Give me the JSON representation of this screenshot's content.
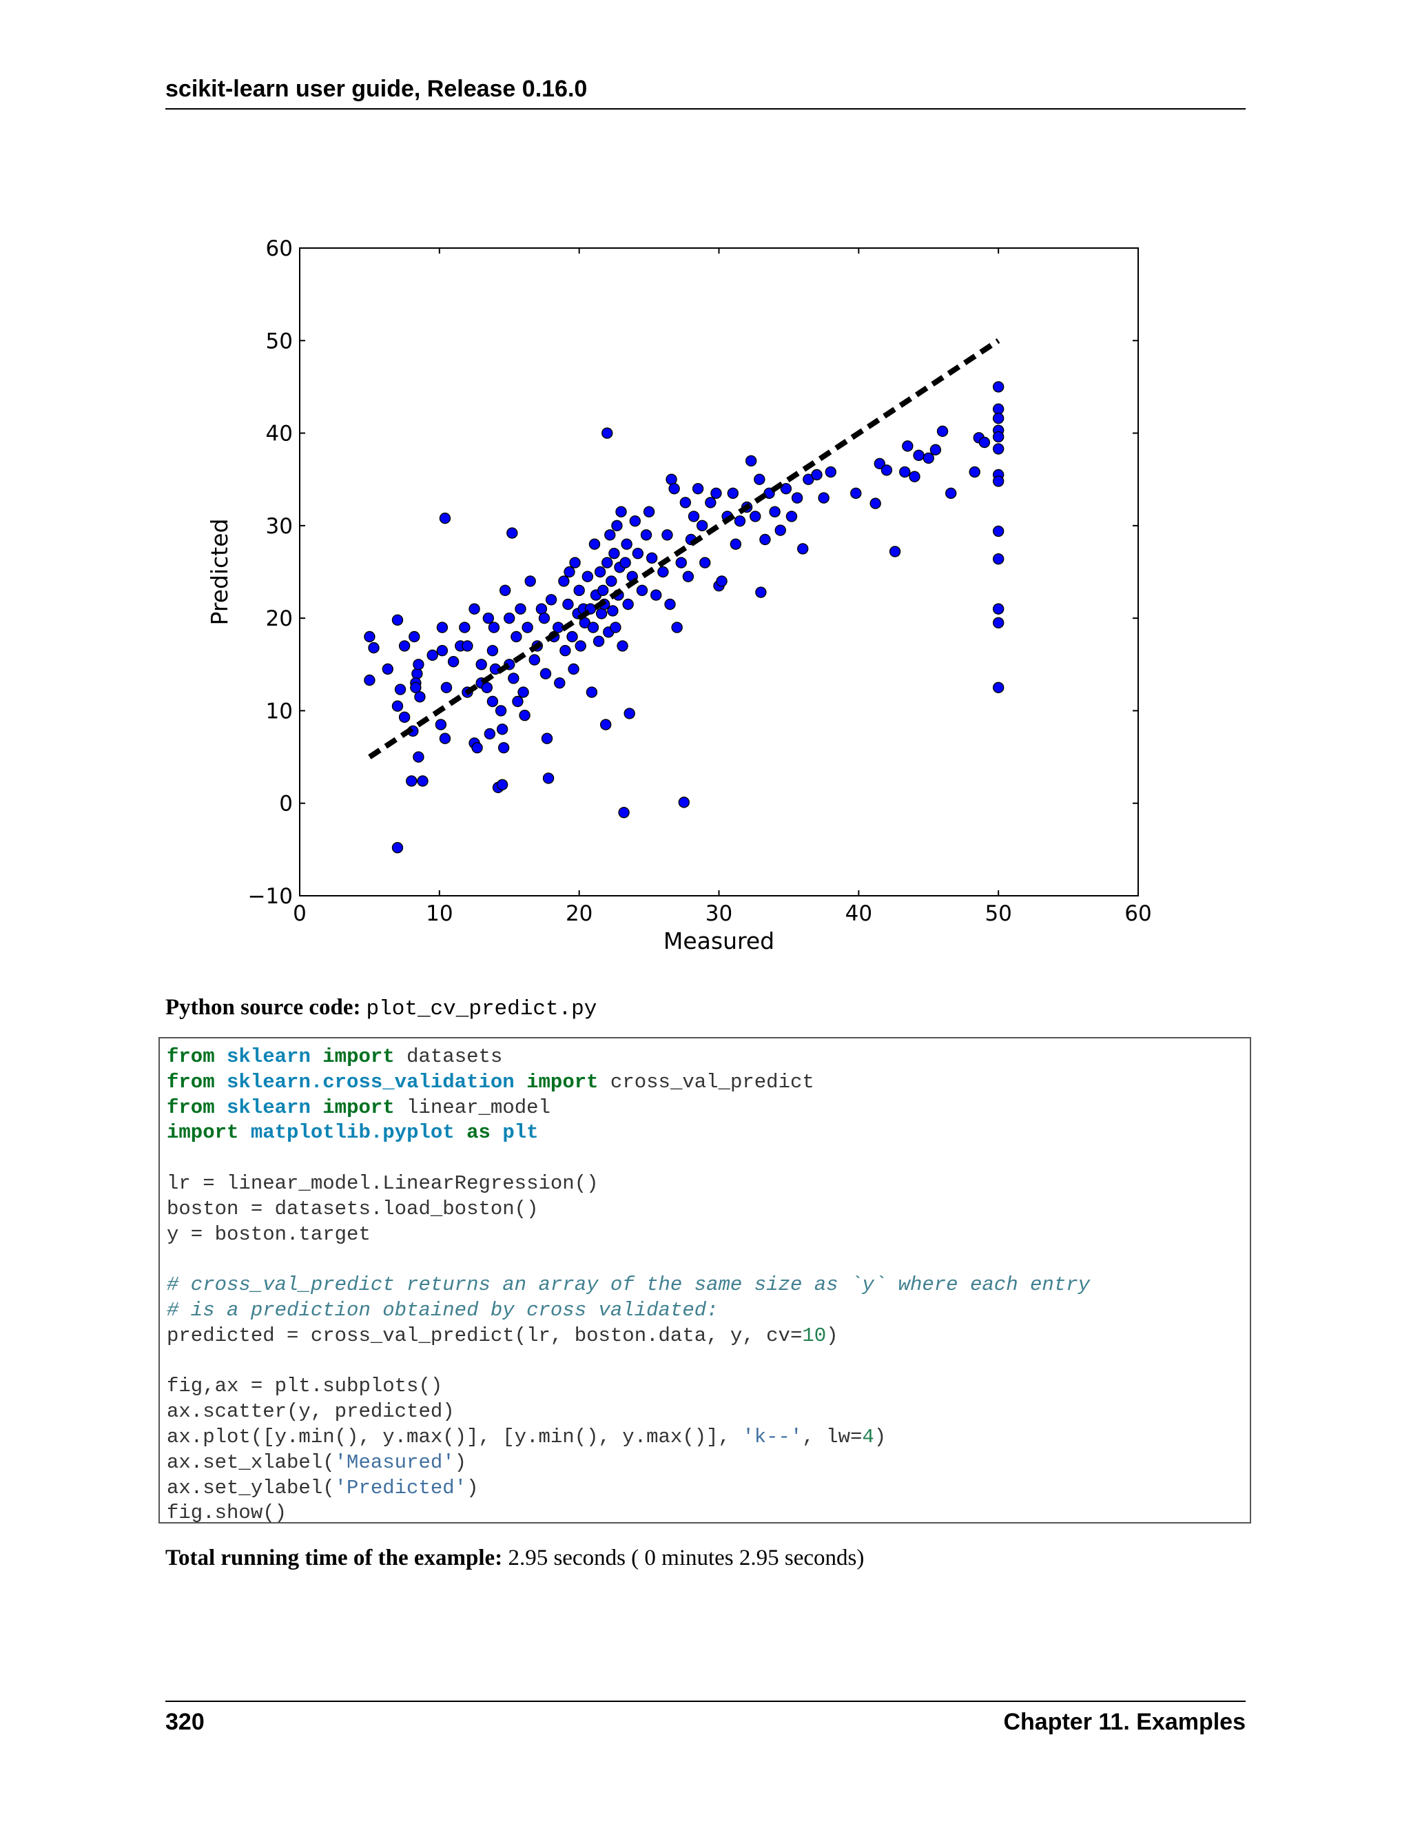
{
  "header": {
    "title": "scikit-learn user guide, Release 0.16.0"
  },
  "chart_data": {
    "type": "scatter",
    "title": "",
    "xlabel": "Measured",
    "ylabel": "Predicted",
    "xlim": [
      0,
      60
    ],
    "ylim": [
      -10,
      60
    ],
    "x_ticks": [
      0,
      10,
      20,
      30,
      40,
      50,
      60
    ],
    "y_ticks": [
      -10,
      0,
      10,
      20,
      30,
      40,
      50,
      60
    ],
    "y_tick_labels": [
      "−10",
      "0",
      "10",
      "20",
      "30",
      "40",
      "50",
      "60"
    ],
    "grid": false,
    "point_color": "#0000ff",
    "line_color": "#000000",
    "series": [
      {
        "type": "scatter",
        "points": [
          [
            5,
            18
          ],
          [
            5.3,
            16.8
          ],
          [
            5,
            13.3
          ],
          [
            6.3,
            14.5
          ],
          [
            7,
            19.8
          ],
          [
            7.2,
            12.3
          ],
          [
            7.5,
            17
          ],
          [
            7,
            10.5
          ],
          [
            7.5,
            9.3
          ],
          [
            8.1,
            7.8
          ],
          [
            8,
            2.4
          ],
          [
            8.8,
            2.4
          ],
          [
            8.5,
            5
          ],
          [
            8.4,
            14
          ],
          [
            8.3,
            13
          ],
          [
            8.3,
            12.5
          ],
          [
            8.6,
            11.5
          ],
          [
            8.5,
            15
          ],
          [
            8.2,
            18
          ],
          [
            9.5,
            16
          ],
          [
            10.2,
            16.5
          ],
          [
            10.2,
            19
          ],
          [
            10.1,
            8.5
          ],
          [
            10.4,
            7
          ],
          [
            10.4,
            30.8
          ],
          [
            10.5,
            12.5
          ],
          [
            11,
            15.3
          ],
          [
            11.5,
            17
          ],
          [
            11.8,
            19
          ],
          [
            12,
            17
          ],
          [
            12,
            12
          ],
          [
            12.5,
            21
          ],
          [
            12.5,
            6.5
          ],
          [
            12.7,
            6
          ],
          [
            13,
            15
          ],
          [
            13,
            13
          ],
          [
            13.4,
            12.5
          ],
          [
            13.5,
            20
          ],
          [
            13.8,
            16.5
          ],
          [
            13.9,
            19
          ],
          [
            13.8,
            11
          ],
          [
            13.6,
            7.5
          ],
          [
            14.4,
            10
          ],
          [
            14.5,
            8
          ],
          [
            14.7,
            23
          ],
          [
            14,
            14.5
          ],
          [
            14.2,
            1.7
          ],
          [
            14.5,
            2
          ],
          [
            14.6,
            6
          ],
          [
            15,
            20
          ],
          [
            15.2,
            29.2
          ],
          [
            15,
            15
          ],
          [
            15.3,
            13.5
          ],
          [
            15.5,
            18
          ],
          [
            15.6,
            11
          ],
          [
            15.8,
            21
          ],
          [
            16,
            12
          ],
          [
            16.1,
            9.5
          ],
          [
            16.3,
            19
          ],
          [
            16.5,
            24
          ],
          [
            16.8,
            15.5
          ],
          [
            17,
            17
          ],
          [
            17.3,
            21
          ],
          [
            17.5,
            20
          ],
          [
            17.6,
            14
          ],
          [
            17.7,
            7
          ],
          [
            17.8,
            2.7
          ],
          [
            18,
            22
          ],
          [
            18.2,
            18
          ],
          [
            18.5,
            19
          ],
          [
            18.6,
            13
          ],
          [
            18.9,
            24
          ],
          [
            19,
            16.5
          ],
          [
            19.2,
            21.5
          ],
          [
            19.3,
            25
          ],
          [
            19.5,
            18
          ],
          [
            19.6,
            14.5
          ],
          [
            19.7,
            26
          ],
          [
            19.9,
            20.5
          ],
          [
            20,
            23
          ],
          [
            20.1,
            17
          ],
          [
            20.3,
            21
          ],
          [
            20.4,
            19.5
          ],
          [
            20.6,
            24.5
          ],
          [
            20.8,
            21
          ],
          [
            20.9,
            12
          ],
          [
            21,
            19
          ],
          [
            21.1,
            28
          ],
          [
            21.2,
            22.5
          ],
          [
            21.4,
            17.5
          ],
          [
            21.5,
            25
          ],
          [
            21.6,
            20.5
          ],
          [
            21.7,
            23
          ],
          [
            21.8,
            21.5
          ],
          [
            21.9,
            8.5
          ],
          [
            22,
            40
          ],
          [
            22,
            26
          ],
          [
            22.1,
            18.5
          ],
          [
            22.2,
            29
          ],
          [
            22.3,
            24
          ],
          [
            22.4,
            20.8
          ],
          [
            22.5,
            27
          ],
          [
            22.6,
            19
          ],
          [
            22.7,
            30
          ],
          [
            22.8,
            22.5
          ],
          [
            22.9,
            25.5
          ],
          [
            23,
            31.5
          ],
          [
            23.1,
            17
          ],
          [
            23.2,
            -1
          ],
          [
            23.3,
            26
          ],
          [
            23.4,
            28
          ],
          [
            23.5,
            21.5
          ],
          [
            23.6,
            9.7
          ],
          [
            23.8,
            24.5
          ],
          [
            24,
            30.5
          ],
          [
            24.2,
            27
          ],
          [
            24.5,
            23
          ],
          [
            24.8,
            29
          ],
          [
            25,
            31.5
          ],
          [
            25.2,
            26.5
          ],
          [
            25.5,
            22.5
          ],
          [
            26,
            25
          ],
          [
            26.3,
            29
          ],
          [
            26.5,
            21.5
          ],
          [
            26.6,
            35
          ],
          [
            26.8,
            34
          ],
          [
            27,
            19
          ],
          [
            27.3,
            26
          ],
          [
            27.5,
            0.1
          ],
          [
            27.6,
            32.5
          ],
          [
            27.8,
            24.5
          ],
          [
            28,
            28.5
          ],
          [
            28.2,
            31
          ],
          [
            28.5,
            34
          ],
          [
            28.8,
            30
          ],
          [
            29,
            26
          ],
          [
            29.4,
            32.5
          ],
          [
            29.8,
            33.5
          ],
          [
            30,
            23.5
          ],
          [
            30.2,
            24
          ],
          [
            30.6,
            31
          ],
          [
            31,
            33.5
          ],
          [
            31.2,
            28
          ],
          [
            31.5,
            30.5
          ],
          [
            32,
            32
          ],
          [
            32.3,
            37
          ],
          [
            32.6,
            31
          ],
          [
            32.9,
            35
          ],
          [
            33,
            22.8
          ],
          [
            33.3,
            28.5
          ],
          [
            33.6,
            33.5
          ],
          [
            34,
            31.5
          ],
          [
            34.4,
            29.5
          ],
          [
            34.8,
            34
          ],
          [
            35.2,
            31
          ],
          [
            35.6,
            33
          ],
          [
            36,
            27.5
          ],
          [
            36.4,
            35
          ],
          [
            37,
            35.5
          ],
          [
            37.5,
            33
          ],
          [
            38,
            35.8
          ],
          [
            39.8,
            33.5
          ],
          [
            41.2,
            32.4
          ],
          [
            41.5,
            36.7
          ],
          [
            42,
            36
          ],
          [
            42.6,
            27.2
          ],
          [
            43.3,
            35.8
          ],
          [
            43.5,
            38.6
          ],
          [
            44,
            35.3
          ],
          [
            44.3,
            37.6
          ],
          [
            45,
            37.3
          ],
          [
            45.5,
            38.2
          ],
          [
            46,
            40.2
          ],
          [
            46.6,
            33.5
          ],
          [
            48.3,
            35.8
          ],
          [
            48.6,
            39.5
          ],
          [
            49,
            39
          ],
          [
            50,
            45
          ],
          [
            50,
            42.6
          ],
          [
            50,
            41.6
          ],
          [
            50,
            40.3
          ],
          [
            50,
            39.6
          ],
          [
            50,
            38.3
          ],
          [
            50,
            35.5
          ],
          [
            50,
            34.8
          ],
          [
            50,
            29.4
          ],
          [
            50,
            26.4
          ],
          [
            50,
            21
          ],
          [
            50,
            19.5
          ],
          [
            50,
            12.5
          ],
          [
            7,
            -4.8
          ]
        ]
      },
      {
        "type": "line",
        "style": "dashed",
        "points": [
          [
            5,
            5
          ],
          [
            50,
            50
          ]
        ]
      }
    ]
  },
  "source": {
    "label": "Python source code:",
    "filename": "plot_cv_predict.py"
  },
  "code": {
    "lines": [
      [
        {
          "t": "from",
          "c": "kw"
        },
        {
          "t": " "
        },
        {
          "t": "sklearn",
          "c": "nn"
        },
        {
          "t": " "
        },
        {
          "t": "import",
          "c": "kw"
        },
        {
          "t": " datasets"
        }
      ],
      [
        {
          "t": "from",
          "c": "kw"
        },
        {
          "t": " "
        },
        {
          "t": "sklearn.cross_validation",
          "c": "nn"
        },
        {
          "t": " "
        },
        {
          "t": "import",
          "c": "kw"
        },
        {
          "t": " cross_val_predict"
        }
      ],
      [
        {
          "t": "from",
          "c": "kw"
        },
        {
          "t": " "
        },
        {
          "t": "sklearn",
          "c": "nn"
        },
        {
          "t": " "
        },
        {
          "t": "import",
          "c": "kw"
        },
        {
          "t": " linear_model"
        }
      ],
      [
        {
          "t": "import",
          "c": "kw"
        },
        {
          "t": " "
        },
        {
          "t": "matplotlib.pyplot",
          "c": "nn"
        },
        {
          "t": " "
        },
        {
          "t": "as",
          "c": "kw"
        },
        {
          "t": " "
        },
        {
          "t": "plt",
          "c": "nn"
        }
      ],
      [],
      [
        {
          "t": "lr = linear_model.LinearRegression()"
        }
      ],
      [
        {
          "t": "boston = datasets.load_boston()"
        }
      ],
      [
        {
          "t": "y = boston.target"
        }
      ],
      [],
      [
        {
          "t": "# cross_val_predict returns an array of the same size as `y` where each entry",
          "c": "c1"
        }
      ],
      [
        {
          "t": "# is a prediction obtained by cross validated:",
          "c": "c1"
        }
      ],
      [
        {
          "t": "predicted = cross_val_predict(lr, boston.data, y, cv="
        },
        {
          "t": "10",
          "c": "mi"
        },
        {
          "t": ")"
        }
      ],
      [],
      [
        {
          "t": "fig,ax = plt.subplots()"
        }
      ],
      [
        {
          "t": "ax.scatter(y, predicted)"
        }
      ],
      [
        {
          "t": "ax.plot([y.min(), y.max()], [y.min(), y.max()], "
        },
        {
          "t": "'k--'",
          "c": "s"
        },
        {
          "t": ", lw="
        },
        {
          "t": "4",
          "c": "mi"
        },
        {
          "t": ")"
        }
      ],
      [
        {
          "t": "ax.set_xlabel("
        },
        {
          "t": "'Measured'",
          "c": "s"
        },
        {
          "t": ")"
        }
      ],
      [
        {
          "t": "ax.set_ylabel("
        },
        {
          "t": "'Predicted'",
          "c": "s"
        },
        {
          "t": ")"
        }
      ],
      [
        {
          "t": "fig.show()"
        }
      ]
    ]
  },
  "runtime": {
    "label": "Total running time of the example:",
    "value": "2.95 seconds ( 0 minutes 2.95 seconds)"
  },
  "footer": {
    "page_number": "320",
    "chapter": "Chapter 11.  Examples"
  }
}
